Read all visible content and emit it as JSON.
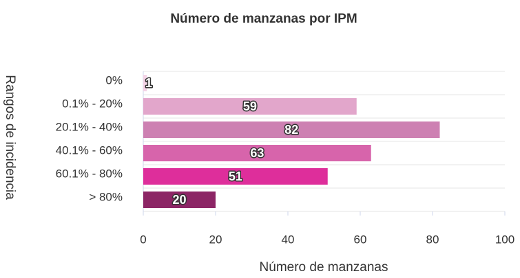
{
  "chart_data": {
    "type": "bar",
    "orientation": "horizontal",
    "title": "Número de manzanas por IPM",
    "x_label": "Número de manzanas",
    "y_label": "Rangos de incidencia",
    "categories": [
      "0%",
      "0.1% - 20%",
      "20.1% - 40%",
      "40.1% - 60%",
      "60.1% - 80%",
      "> 80%"
    ],
    "values": [
      1,
      59,
      82,
      63,
      51,
      20
    ],
    "colors": [
      "#f3d3e6",
      "#e2a6cb",
      "#cd80b2",
      "#d764ab",
      "#de2e9b",
      "#8c2565"
    ],
    "xlim": [
      0,
      100
    ],
    "xticks": [
      0,
      20,
      40,
      60,
      80,
      100
    ]
  }
}
